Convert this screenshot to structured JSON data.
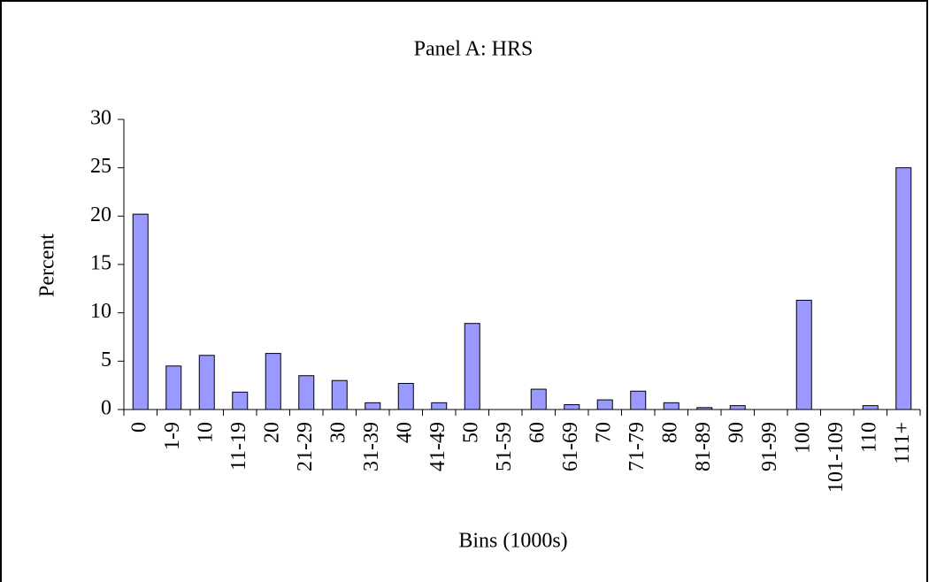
{
  "chart_data": {
    "type": "bar",
    "title": "Panel A: HRS",
    "x_label": "Bins (1000s)",
    "y_label": "Percent",
    "categories": [
      "0",
      "1-9",
      "10",
      "11-19",
      "20",
      "21-29",
      "30",
      "31-39",
      "40",
      "41-49",
      "50",
      "51-59",
      "60",
      "61-69",
      "70",
      "71-79",
      "80",
      "81-89",
      "90",
      "91-99",
      "100",
      "101-109",
      "110",
      "111+"
    ],
    "values": [
      20.2,
      4.5,
      5.6,
      1.8,
      5.8,
      3.5,
      3.0,
      0.7,
      2.7,
      0.7,
      8.9,
      0,
      2.1,
      0.5,
      1.0,
      1.9,
      0.7,
      0.2,
      0.4,
      0,
      11.3,
      0,
      0.4,
      25.0
    ],
    "color": "#9999ff",
    "ylim": [
      0,
      30
    ],
    "yticks": [
      0,
      5,
      10,
      15,
      20,
      25,
      30
    ],
    "grid": false
  }
}
